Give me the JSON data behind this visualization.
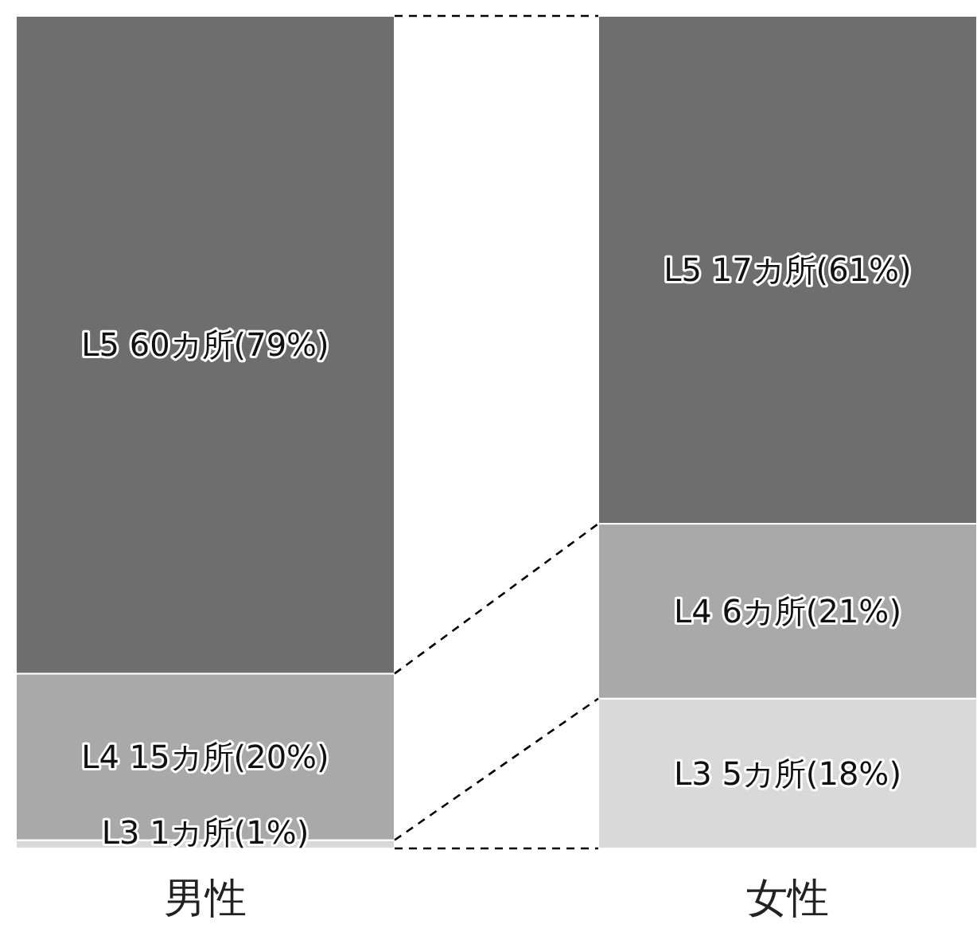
{
  "chart_data": {
    "type": "bar",
    "stacked": true,
    "categories": [
      "男性",
      "女性"
    ],
    "series": [
      {
        "color": "#d9d9d9",
        "values": [
          1,
          18
        ],
        "value_labels": [
          "L3 1カ所(1%)",
          "L3 5カ所(18%)"
        ]
      },
      {
        "color": "#a9a9a9",
        "values": [
          20,
          21
        ],
        "value_labels": [
          "L4 15カ所(20%)",
          "L4 6カ所(21%)"
        ]
      },
      {
        "color": "#6e6e6e",
        "values": [
          79,
          61
        ],
        "value_labels": [
          "L5 60カ所(79%)",
          "L5 17カ所(61%)"
        ]
      }
    ]
  }
}
